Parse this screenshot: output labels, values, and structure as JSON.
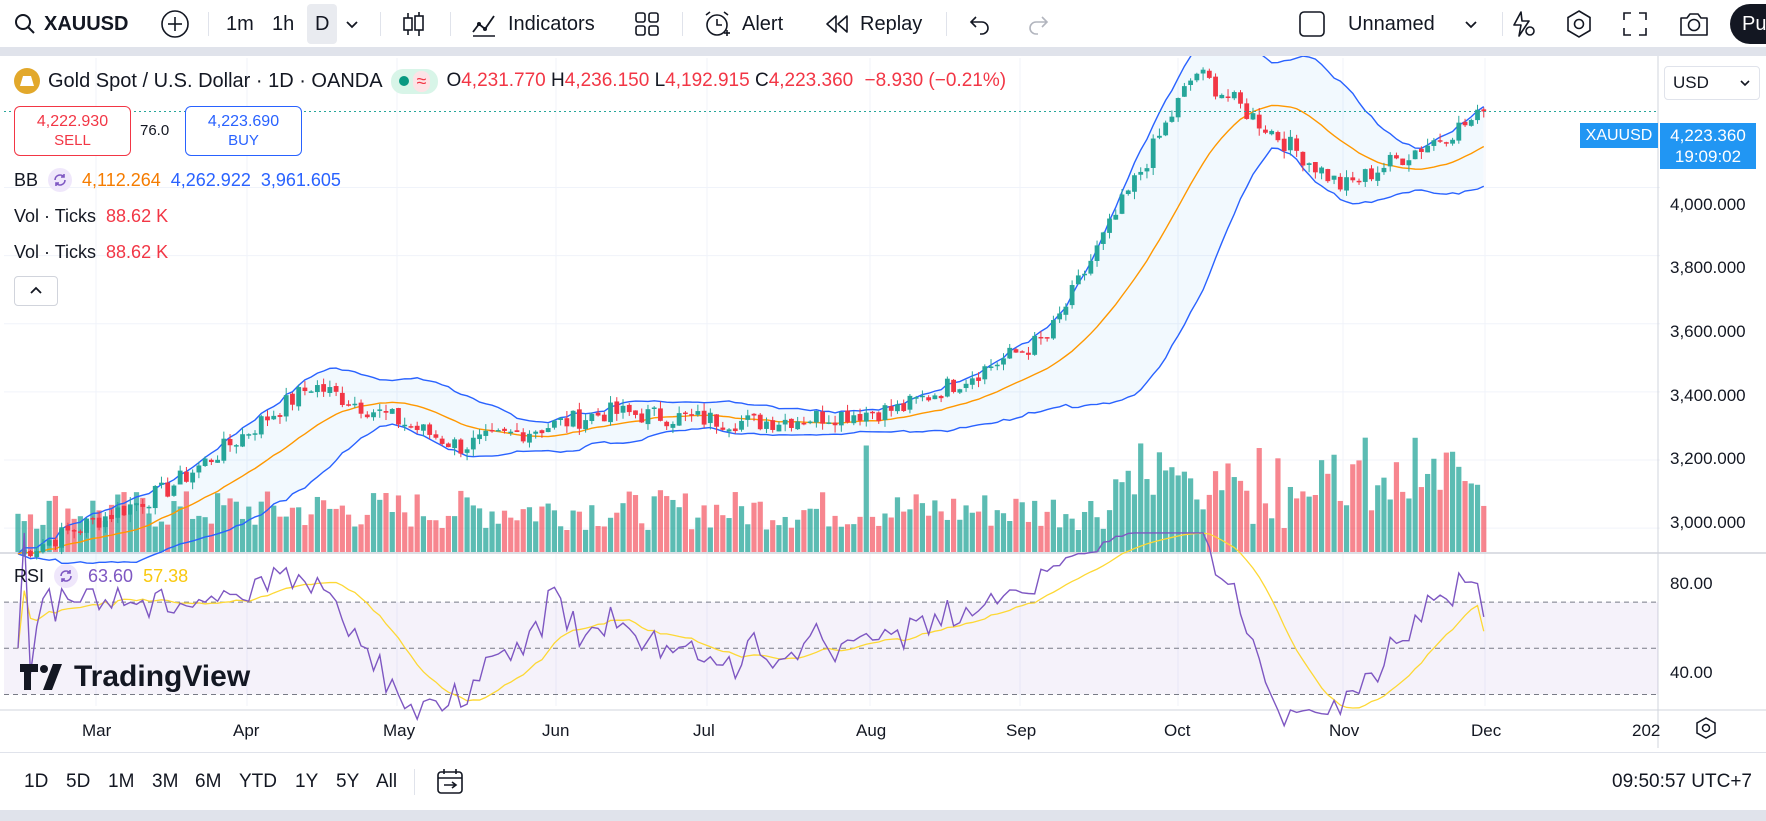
{
  "toolbar": {
    "symbol": "XAUUSD",
    "intervals": [
      "1m",
      "1h",
      "D"
    ],
    "indicators_label": "Indicators",
    "alert_label": "Alert",
    "replay_label": "Replay",
    "layout_name": "Unnamed",
    "publish_label": "Pu"
  },
  "legend": {
    "title": "Gold Spot / U.S. Dollar · 1D · OANDA",
    "open_key": "O",
    "open": "4,231.770",
    "high_key": "H",
    "high": "4,236.150",
    "low_key": "L",
    "low": "4,192.915",
    "close_key": "C",
    "close": "4,223.360",
    "change": "−8.930 (−0.21%)"
  },
  "trade": {
    "sell_price": "4,222.930",
    "sell_label": "SELL",
    "spread": "76.0",
    "buy_price": "4,223.690",
    "buy_label": "BUY"
  },
  "indicators": {
    "bb_label": "BB",
    "bb_basis": "4,112.264",
    "bb_upper": "4,262.922",
    "bb_lower": "3,961.605",
    "vol1_label": "Vol · Ticks",
    "vol1_value": "88.62 K",
    "vol2_label": "Vol · Ticks",
    "vol2_value": "88.62 K",
    "rsi_label": "RSI",
    "rsi_value": "63.60",
    "rsi_ma": "57.38"
  },
  "price_scale": {
    "currency": "USD",
    "labels": [
      "4,000.000",
      "3,800.000",
      "3,600.000",
      "3,400.000",
      "3,200.000",
      "3,000.000"
    ],
    "rsi_labels": [
      "80.00",
      "40.00"
    ],
    "symbol_tag": "XAUUSD",
    "last_price": "4,223.360",
    "countdown": "19:09:02"
  },
  "time_scale": {
    "labels": [
      "Mar",
      "Apr",
      "May",
      "Jun",
      "Jul",
      "Aug",
      "Sep",
      "Oct",
      "Nov",
      "Dec",
      "202"
    ]
  },
  "bottom_bar": {
    "ranges": [
      "1D",
      "5D",
      "1M",
      "3M",
      "6M",
      "YTD",
      "1Y",
      "5Y",
      "All"
    ],
    "clock": "09:50:57 UTC+7"
  },
  "branding": {
    "logo_text": "TradingView"
  },
  "colors": {
    "up": "#26a69a",
    "down": "#f23645",
    "bb_band": "#2962ff",
    "bb_basis": "#ff9800",
    "rsi": "#7e57c2",
    "rsi_ma": "#fdd835",
    "accent": "#2196f3"
  },
  "chart_data": {
    "type": "candlestick",
    "symbol": "XAUUSD",
    "timeframe": "1D",
    "price_range": [
      2930,
      4380
    ],
    "rsi_range": [
      25,
      90
    ],
    "months": [
      "Mar",
      "Apr",
      "May",
      "Jun",
      "Jul",
      "Aug",
      "Sep",
      "Oct",
      "Nov",
      "Dec"
    ],
    "close_path": [
      {
        "month": "Mar",
        "close": 2925
      },
      {
        "month": "Apr",
        "close": 3110
      },
      {
        "month": "Apr",
        "close": 3420
      },
      {
        "month": "May",
        "close": 3240
      },
      {
        "month": "Jun",
        "close": 3340
      },
      {
        "month": "Jul",
        "close": 3310
      },
      {
        "month": "Aug",
        "close": 3350
      },
      {
        "month": "Sep",
        "close": 3560
      },
      {
        "month": "Oct",
        "close": 4340
      },
      {
        "month": "Nov",
        "close": 4000
      },
      {
        "month": "Dec",
        "close": 4223
      }
    ],
    "rsi_last": 63.6,
    "rsi_ma_last": 57.38,
    "last_volume": "88.62K"
  }
}
